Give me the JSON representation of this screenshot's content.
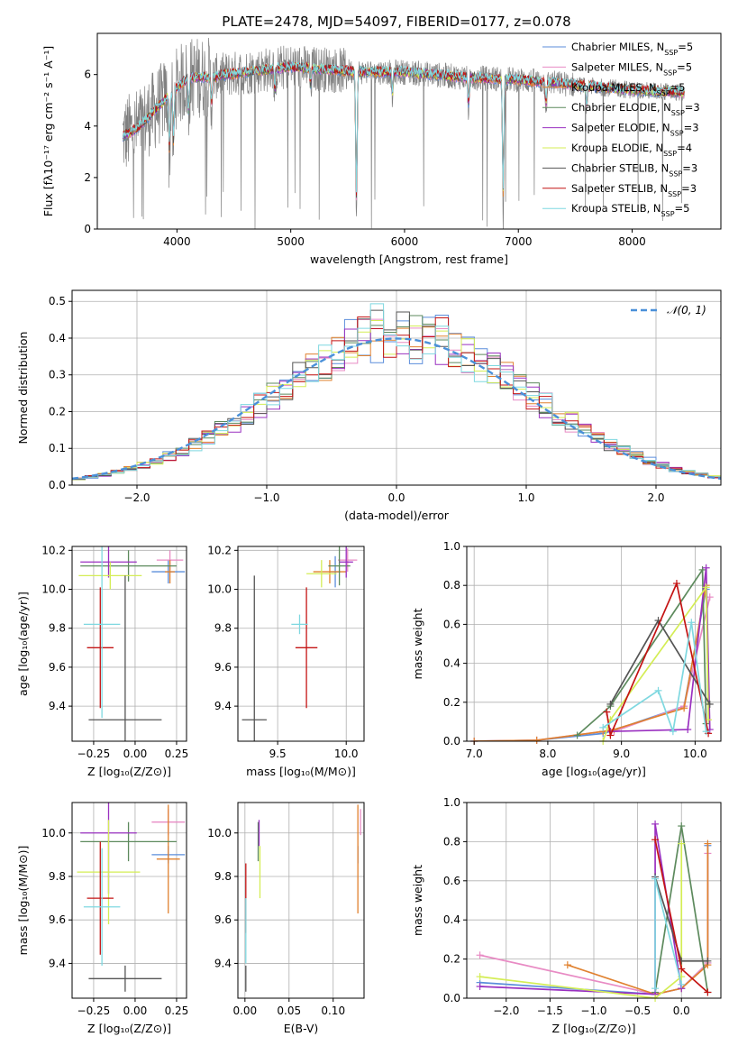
{
  "figure_title": "PLATE=2478, MJD=54097, FIBERID=0177, z=0.078",
  "models": [
    {
      "name": "Chabrier MILES",
      "nssp": "5",
      "color": "#5b8ddb"
    },
    {
      "name": "Salpeter MILES",
      "nssp": "5",
      "color": "#e88bc4"
    },
    {
      "name": "Kroupa MILES",
      "nssp": "5",
      "color": "#e0812f"
    },
    {
      "name": "Chabrier ELODIE",
      "nssp": "3",
      "color": "#5d8a5d"
    },
    {
      "name": "Salpeter ELODIE",
      "nssp": "3",
      "color": "#9a30c0"
    },
    {
      "name": "Kroupa ELODIE",
      "nssp": "4",
      "color": "#d4ed55"
    },
    {
      "name": "Chabrier STELIB",
      "nssp": "3",
      "color": "#555555"
    },
    {
      "name": "Salpeter STELIB",
      "nssp": "3",
      "color": "#c41414"
    },
    {
      "name": "Kroupa STELIB",
      "nssp": "5",
      "color": "#7fd8e0"
    }
  ],
  "data_color": "#808080",
  "chart_data": [
    {
      "id": "spectrum",
      "type": "line",
      "xlabel": "wavelength [Angstrom, rest frame]",
      "ylabel": "Flux [fλ10⁻¹⁷ erg cm⁻² s⁻¹ A⁻¹]",
      "xlim": [
        3300,
        8780
      ],
      "ylim": [
        0,
        7.6
      ],
      "xticks": [
        4000,
        5000,
        6000,
        7000,
        8000
      ],
      "yticks": [
        0,
        2,
        4,
        6
      ],
      "data_range": [
        3525,
        8460
      ],
      "continuum_knots": [
        [
          3525,
          3.6
        ],
        [
          3650,
          3.9
        ],
        [
          3800,
          4.6
        ],
        [
          3930,
          5.2
        ],
        [
          4100,
          5.9
        ],
        [
          4300,
          5.9
        ],
        [
          4600,
          6.1
        ],
        [
          5000,
          6.3
        ],
        [
          5300,
          6.2
        ],
        [
          5600,
          6.1
        ],
        [
          6000,
          6.1
        ],
        [
          6500,
          5.9
        ],
        [
          7000,
          5.8
        ],
        [
          7500,
          5.6
        ],
        [
          8000,
          5.4
        ],
        [
          8460,
          5.3
        ]
      ],
      "dips": [
        [
          3934,
          2.6
        ],
        [
          3969,
          2.4
        ],
        [
          4102,
          1.6
        ],
        [
          4304,
          1.2
        ],
        [
          4861,
          1.0
        ],
        [
          5175,
          0.8
        ],
        [
          5577,
          6.0
        ],
        [
          5893,
          1.0
        ],
        [
          6563,
          1.3
        ],
        [
          6867,
          5.5
        ],
        [
          7244,
          1.0
        ],
        [
          7600,
          1.0
        ]
      ]
    },
    {
      "id": "residuals",
      "type": "step",
      "xlabel": "(data-model)/error",
      "ylabel": "Normed distribution",
      "xlim": [
        -2.5,
        2.5
      ],
      "ylim": [
        0,
        0.53
      ],
      "xticks": [
        -2,
        -1,
        0,
        1,
        2
      ],
      "yticks": [
        0.0,
        0.1,
        0.2,
        0.3,
        0.4,
        0.5
      ],
      "bin_width": 0.1,
      "bin_start": -2.5,
      "reference": {
        "label": "𝒩(0, 1)",
        "mean": 0,
        "sigma": 1,
        "color": "#4a90d9"
      }
    },
    {
      "id": "age_vs_Z",
      "type": "errorbar",
      "xlabel": "Z [log₁₀(Z/Z⊙)]",
      "ylabel": "age  [log₁₀(age/yr)]",
      "xlim": [
        -0.38,
        0.31
      ],
      "ylim": [
        9.22,
        10.22
      ],
      "xticks": [
        -0.25,
        0.0,
        0.25
      ],
      "yticks": [
        9.4,
        9.6,
        9.8,
        10.0,
        10.2
      ],
      "points": [
        {
          "x": 0.2,
          "y": 10.09,
          "xerr": 0.1,
          "yerr": 0.06
        },
        {
          "x": 0.21,
          "y": 10.15,
          "xerr": 0.08,
          "yerr": 0.05
        },
        {
          "x": 0.21,
          "y": 10.09,
          "xerr": 0.03,
          "yerr": 0.06
        },
        {
          "x": -0.04,
          "y": 10.12,
          "xerr": 0.29,
          "yerr": 0.08
        },
        {
          "x": -0.16,
          "y": 10.14,
          "xerr": 0.17,
          "yerr": 0.08
        },
        {
          "x": -0.15,
          "y": 10.07,
          "xerr": 0.19,
          "yerr": 0.07
        },
        {
          "x": -0.06,
          "y": 9.33,
          "xerr": 0.22,
          "yerr": 0.74
        },
        {
          "x": -0.21,
          "y": 9.7,
          "xerr": 0.08,
          "yerr": 0.31
        },
        {
          "x": -0.2,
          "y": 9.82,
          "xerr": 0.11,
          "yerr": 0.48
        }
      ]
    },
    {
      "id": "age_vs_mass",
      "type": "errorbar",
      "xlabel": "mass [log₁₀(M/M⊙)]",
      "ylabel": "",
      "xlim": [
        9.21,
        10.13
      ],
      "ylim": [
        9.22,
        10.22
      ],
      "xticks": [
        9.5,
        10.0
      ],
      "yticks": [
        9.4,
        9.6,
        9.8,
        10.0,
        10.2
      ],
      "points": [
        {
          "x": 9.92,
          "y": 10.09,
          "xerr": 0.04,
          "yerr": 0.08
        },
        {
          "x": 10.01,
          "y": 10.15,
          "xerr": 0.07,
          "yerr": 0.06
        },
        {
          "x": 9.88,
          "y": 10.09,
          "xerr": 0.12,
          "yerr": 0.06
        },
        {
          "x": 9.95,
          "y": 10.12,
          "xerr": 0.08,
          "yerr": 0.1
        },
        {
          "x": 10.0,
          "y": 10.14,
          "xerr": 0.05,
          "yerr": 0.08
        },
        {
          "x": 9.82,
          "y": 10.08,
          "xerr": 0.11,
          "yerr": 0.07
        },
        {
          "x": 9.33,
          "y": 9.33,
          "xerr": 0.09,
          "yerr": 0.74
        },
        {
          "x": 9.71,
          "y": 9.7,
          "xerr": 0.08,
          "yerr": 0.31
        },
        {
          "x": 9.66,
          "y": 9.82,
          "xerr": 0.06,
          "yerr": 0.05
        }
      ]
    },
    {
      "id": "mass_weight_vs_age",
      "type": "line",
      "xlabel": "age  [log₁₀(age/yr)]",
      "ylabel": "mass weight",
      "xlim": [
        6.9,
        10.35
      ],
      "ylim": [
        0,
        1.0
      ],
      "xticks": [
        7,
        8,
        9,
        10
      ],
      "yticks": [
        0.0,
        0.2,
        0.4,
        0.6,
        0.8,
        1.0
      ],
      "series": [
        {
          "model": 0,
          "x": [
            7.0,
            7.85,
            8.75,
            8.85,
            9.85,
            10.15
          ],
          "y": [
            0.0,
            0.005,
            0.04,
            0.05,
            0.18,
            0.78
          ]
        },
        {
          "model": 1,
          "x": [
            7.0,
            7.85,
            8.75,
            8.9,
            9.85,
            10.2
          ],
          "y": [
            0.0,
            0.005,
            0.05,
            0.05,
            0.18,
            0.74
          ]
        },
        {
          "model": 2,
          "x": [
            7.0,
            7.85,
            8.75,
            8.9,
            9.85,
            10.15
          ],
          "y": [
            0.0,
            0.005,
            0.05,
            0.06,
            0.17,
            0.8
          ]
        },
        {
          "model": 3,
          "x": [
            8.4,
            8.85,
            10.1,
            10.15
          ],
          "y": [
            0.03,
            0.18,
            0.88,
            0.09
          ]
        },
        {
          "model": 4,
          "x": [
            8.85,
            9.9,
            10.15,
            10.2
          ],
          "y": [
            0.05,
            0.06,
            0.89,
            0.06
          ]
        },
        {
          "model": 5,
          "x": [
            8.75,
            8.85,
            10.15,
            10.18
          ],
          "y": [
            0.0,
            0.11,
            0.79,
            0.11
          ]
        },
        {
          "model": 6,
          "x": [
            8.85,
            9.5,
            10.2
          ],
          "y": [
            0.19,
            0.62,
            0.19
          ]
        },
        {
          "model": 7,
          "x": [
            8.8,
            8.85,
            9.75,
            10.18
          ],
          "y": [
            0.15,
            0.03,
            0.81,
            0.04
          ]
        },
        {
          "model": 8,
          "x": [
            8.75,
            9.5,
            9.7,
            9.95,
            10.15
          ],
          "y": [
            0.07,
            0.26,
            0.05,
            0.61,
            0.05
          ]
        }
      ]
    },
    {
      "id": "mass_vs_Z",
      "type": "errorbar",
      "xlabel": "Z [log₁₀(Z/Z⊙)]",
      "ylabel": "mass [log₁₀(M/M⊙)]",
      "xlim": [
        -0.38,
        0.31
      ],
      "ylim": [
        9.24,
        10.14
      ],
      "xticks": [
        -0.25,
        0.0,
        0.25
      ],
      "yticks": [
        9.4,
        9.6,
        9.8,
        10.0
      ],
      "points": [
        {
          "x": 0.2,
          "y": 9.9,
          "xerr": 0.1,
          "yerr": 0.04
        },
        {
          "x": 0.2,
          "y": 10.05,
          "xerr": 0.1,
          "yerr": 0.06
        },
        {
          "x": 0.2,
          "y": 9.88,
          "xerr": 0.07,
          "yerr": 0.25
        },
        {
          "x": -0.04,
          "y": 9.96,
          "xerr": 0.29,
          "yerr": 0.09
        },
        {
          "x": -0.16,
          "y": 10.0,
          "xerr": 0.17,
          "yerr": 0.28
        },
        {
          "x": -0.16,
          "y": 9.82,
          "xerr": 0.19,
          "yerr": 0.24
        },
        {
          "x": -0.06,
          "y": 9.33,
          "xerr": 0.22,
          "yerr": 0.06
        },
        {
          "x": -0.21,
          "y": 9.7,
          "xerr": 0.08,
          "yerr": 0.26
        },
        {
          "x": -0.2,
          "y": 9.66,
          "xerr": 0.11,
          "yerr": 0.27
        }
      ]
    },
    {
      "id": "mass_vs_ebv",
      "type": "errorbar",
      "xlabel": "E(B-V)",
      "ylabel": "",
      "xlim": [
        -0.008,
        0.135
      ],
      "ylim": [
        9.24,
        10.14
      ],
      "xticks": [
        0.0,
        0.05,
        0.1
      ],
      "yticks": [
        9.4,
        9.6,
        9.8,
        10.0
      ],
      "points": [
        {
          "x": 0.128,
          "y": 9.9,
          "xerr": 0,
          "yerr": 0.04
        },
        {
          "x": 0.131,
          "y": 10.05,
          "xerr": 0,
          "yerr": 0.06
        },
        {
          "x": 0.128,
          "y": 9.88,
          "xerr": 0,
          "yerr": 0.25
        },
        {
          "x": 0.015,
          "y": 9.96,
          "xerr": 0,
          "yerr": 0.09
        },
        {
          "x": 0.016,
          "y": 10.0,
          "xerr": 0,
          "yerr": 0.06
        },
        {
          "x": 0.017,
          "y": 9.82,
          "xerr": 0,
          "yerr": 0.12
        },
        {
          "x": 0.001,
          "y": 9.33,
          "xerr": 0,
          "yerr": 0.06
        },
        {
          "x": 0.001,
          "y": 9.7,
          "xerr": 0,
          "yerr": 0.16
        },
        {
          "x": 0.001,
          "y": 9.55,
          "xerr": 0,
          "yerr": 0.15
        }
      ]
    },
    {
      "id": "mass_weight_vs_Z",
      "type": "line",
      "xlabel": "Z [log₁₀(Z/Z⊙)]",
      "ylabel": "mass weight",
      "xlim": [
        -2.45,
        0.45
      ],
      "ylim": [
        0,
        1.0
      ],
      "xticks": [
        -2.0,
        -1.5,
        -1.0,
        -0.5,
        0.0
      ],
      "yticks": [
        0.0,
        0.2,
        0.4,
        0.6,
        0.8,
        1.0
      ],
      "series": [
        {
          "model": 0,
          "x": [
            -2.3,
            -0.3,
            0.0,
            0.3,
            0.3
          ],
          "y": [
            0.08,
            0.02,
            0.05,
            0.18,
            0.78
          ]
        },
        {
          "model": 1,
          "x": [
            -2.3,
            -0.3,
            0.0,
            0.3,
            0.3
          ],
          "y": [
            0.22,
            0.02,
            0.05,
            0.18,
            0.74
          ]
        },
        {
          "model": 2,
          "x": [
            -1.3,
            -0.3,
            0.0,
            0.3,
            0.3
          ],
          "y": [
            0.17,
            0.02,
            0.05,
            0.17,
            0.79
          ]
        },
        {
          "model": 3,
          "x": [
            -0.3,
            0.0,
            0.3
          ],
          "y": [
            0.03,
            0.88,
            0.03
          ]
        },
        {
          "model": 4,
          "x": [
            -2.3,
            -0.3,
            -0.3,
            0.0
          ],
          "y": [
            0.06,
            0.02,
            0.89,
            0.05
          ]
        },
        {
          "model": 5,
          "x": [
            -2.3,
            -0.3,
            0.0,
            0.0
          ],
          "y": [
            0.11,
            0.0,
            0.11,
            0.79
          ]
        },
        {
          "model": 6,
          "x": [
            -0.3,
            0.0,
            0.3
          ],
          "y": [
            0.62,
            0.19,
            0.19
          ]
        },
        {
          "model": 7,
          "x": [
            -0.3,
            0.0,
            0.3
          ],
          "y": [
            0.81,
            0.15,
            0.03
          ]
        },
        {
          "model": 8,
          "x": [
            -0.3,
            -0.3,
            0.0
          ],
          "y": [
            0.05,
            0.61,
            0.07
          ]
        }
      ]
    }
  ]
}
